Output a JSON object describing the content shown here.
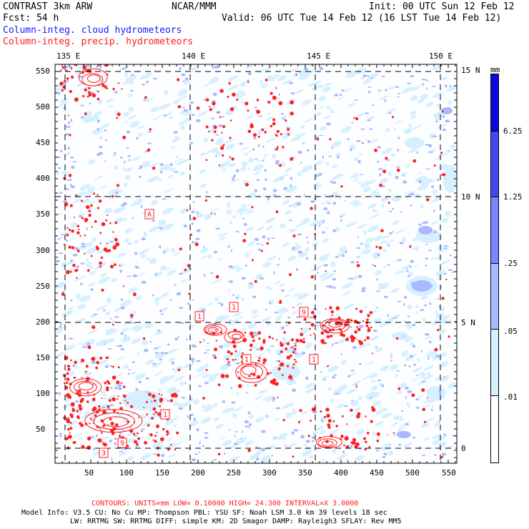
{
  "header": {
    "model": "CONTRAST  3km ARW",
    "org": "NCAR/MMM",
    "init": "Init: 00 UTC Sun 12 Feb 12",
    "fcst": "Fcst:   54 h",
    "valid": "Valid: 06 UTC Tue 14 Feb 12 (16 LST Tue 14 Feb 12)",
    "field1": "Column-integ. cloud hydrometeors",
    "field2": "Column-integ. precip. hydrometeors"
  },
  "colors": {
    "cloud_field": "#1a1aff",
    "precip_field": "#ff1a1a",
    "legend_fills": [
      "#ffffff",
      "#d6f0ff",
      "#a9b8ff",
      "#7c84ff",
      "#4646f0",
      "#0a0ad8"
    ]
  },
  "map": {
    "lon_labels": [
      "135 E",
      "140 E",
      "145 E",
      "150 E"
    ],
    "lat_labels": [
      "15 N",
      "10 N",
      "5 N",
      "0"
    ],
    "x_ticks": [
      "50",
      "100",
      "150",
      "200",
      "250",
      "300",
      "350",
      "400",
      "450",
      "500",
      "550"
    ],
    "y_ticks": [
      "550",
      "500",
      "450",
      "400",
      "350",
      "300",
      "250",
      "200",
      "150",
      "100",
      "50"
    ],
    "box_labels": [
      "A",
      "1",
      "1",
      "9",
      "1",
      "1",
      "1",
      "3",
      "9"
    ]
  },
  "legend": {
    "unit": "mm",
    "labels": [
      "6.25",
      "1.25",
      ".25",
      ".05",
      ".01"
    ]
  },
  "footer": {
    "contours": "CONTOURS:  UNITS=mm  LOW= 0.10000      HIGH=  24.300      INTERVAL=X  3.0000",
    "line1": "Model Info: V3.5      CU: No Cu     MP: Thompson     PBL: YSU       SF: Noah LSM      3.0 km   39 levels   18 sec",
    "line2": "LW: RRTMG     SW: RRTMG   DIFF: simple KM: 2D Smagor DAMP: Rayleigh3  SFLAY: Rev MM5"
  }
}
